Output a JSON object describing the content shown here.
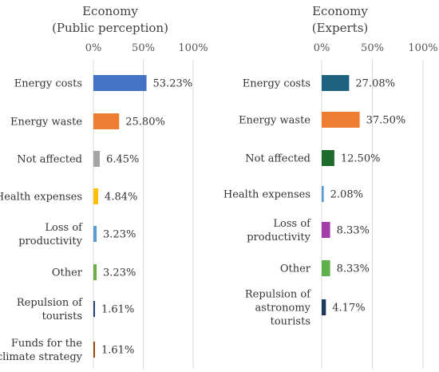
{
  "chart_data": [
    {
      "type": "bar",
      "orientation": "horizontal",
      "title": "Economy\n(Public perception)",
      "xlim": [
        0,
        100
      ],
      "x_ticks": [
        "0%",
        "50%",
        "100%"
      ],
      "grid": true,
      "categories": [
        "Energy costs",
        "Energy waste",
        "Not affected",
        "Health expenses",
        "Loss of\nproductivity",
        "Other",
        "Repulsion of\ntourists",
        "Funds for the\nclimate strategy"
      ],
      "values": [
        53.23,
        25.8,
        6.45,
        4.84,
        3.23,
        3.23,
        1.61,
        1.61
      ],
      "labels": [
        "53.23%",
        "25.80%",
        "6.45%",
        "4.84%",
        "3.23%",
        "3.23%",
        "1.61%",
        "1.61%"
      ],
      "colors": [
        "#4472C4",
        "#ED7D31",
        "#A5A5A5",
        "#FFC000",
        "#5B9BD5",
        "#70AD47",
        "#264478",
        "#9E480E"
      ]
    },
    {
      "type": "bar",
      "orientation": "horizontal",
      "title": "Economy\n(Experts)",
      "xlim": [
        0,
        100
      ],
      "x_ticks": [
        "0%",
        "50%",
        "100%"
      ],
      "grid": true,
      "categories": [
        "Energy costs",
        "Energy waste",
        "Not affected",
        "Health expenses",
        "Loss of\nproductivity",
        "Other",
        "Repulsion of\nastronomy\ntourists"
      ],
      "values": [
        27.08,
        37.5,
        12.5,
        2.08,
        8.33,
        8.33,
        4.17
      ],
      "labels": [
        "27.08%",
        "37.50%",
        "12.50%",
        "2.08%",
        "8.33%",
        "8.33%",
        "4.17%"
      ],
      "colors": [
        "#1F5F80",
        "#ED7D31",
        "#1E6B2E",
        "#5B9BD5",
        "#A33CA8",
        "#5FB04A",
        "#1B3A5C"
      ]
    }
  ]
}
